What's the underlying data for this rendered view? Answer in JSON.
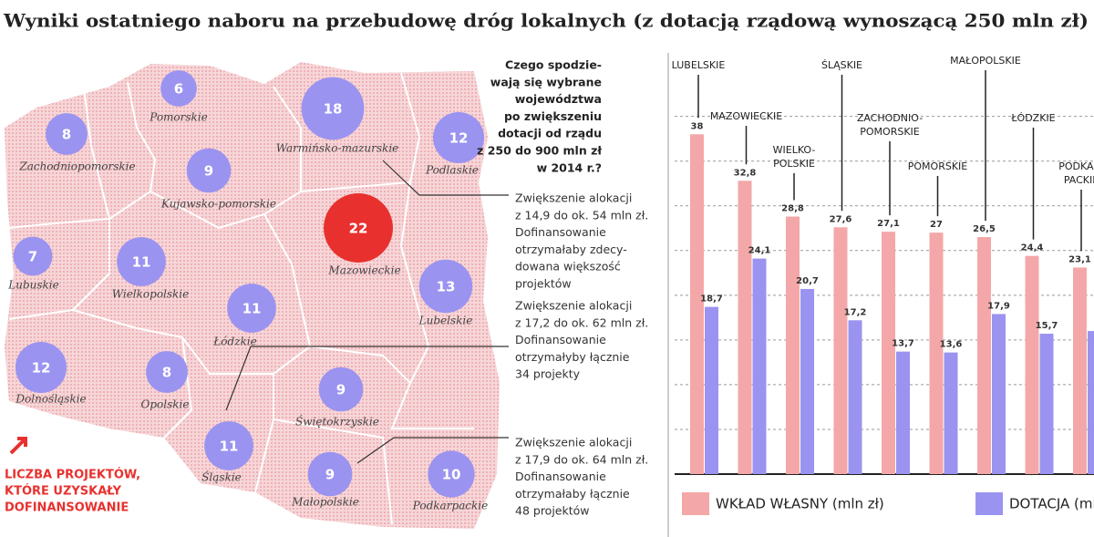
{
  "header": {
    "title": "Wyniki ostatniego naboru na przebudowę dróg lokalnych (z dotacją rządową wynoszącą 250 mln zł)"
  },
  "map": {
    "nodes": [
      {
        "label": "Pomorskie",
        "count": 6,
        "color": "#9b93f0"
      },
      {
        "label": "Zachodniopomorskie",
        "count": 8,
        "color": "#9b93f0"
      },
      {
        "label": "Warmińsko-mazurskie",
        "count": 18,
        "color": "#9b93f0"
      },
      {
        "label": "Podlaskie",
        "count": 12,
        "color": "#9b93f0"
      },
      {
        "label": "Kujawsko-pomorskie",
        "count": 9,
        "color": "#9b93f0"
      },
      {
        "label": "Mazowieckie",
        "count": 22,
        "color": "#e8312f"
      },
      {
        "label": "Lubuskie",
        "count": 7,
        "color": "#9b93f0"
      },
      {
        "label": "Wielkopolskie",
        "count": 11,
        "color": "#9b93f0"
      },
      {
        "label": "Łódzkie",
        "count": 11,
        "color": "#9b93f0"
      },
      {
        "label": "Lubelskie",
        "count": 13,
        "color": "#9b93f0"
      },
      {
        "label": "Dolnośląskie",
        "count": 12,
        "color": "#9b93f0"
      },
      {
        "label": "Opolskie",
        "count": 8,
        "color": "#9b93f0"
      },
      {
        "label": "Świętokrzyskie",
        "count": 9,
        "color": "#9b93f0"
      },
      {
        "label": "Śląskie",
        "count": 11,
        "color": "#9b93f0"
      },
      {
        "label": "Małopolskie",
        "count": 9,
        "color": "#9b93f0"
      },
      {
        "label": "Podkarpackie",
        "count": 10,
        "color": "#9b93f0"
      }
    ],
    "legend": [
      "LICZBA PROJEKTÓW,",
      "KTÓRE UZYSKAŁY",
      "DOFINANSOWANIE"
    ]
  },
  "question": [
    "Czego spodzie-",
    "wają się wybrane",
    "województwa",
    "po zwiększeniu",
    "dotacji od rządu",
    "z 250 do 900 mln zł",
    "w 2014 r.?"
  ],
  "annotations": [
    [
      "Zwiększenie alokacji",
      "z 14,9 do ok. 54 mln zł.",
      "Dofinansowanie",
      "otrzymałaby zdecy-",
      "dowana większość",
      "projektów"
    ],
    [
      "Zwiększenie alokacji",
      "z 17,2 do ok. 62 mln zł.",
      "Dofinansowanie",
      "otrzymałyby łącznie",
      "34 projekty"
    ],
    [
      "Zwiększenie alokacji",
      "z 17,9 do ok. 64 mln zł.",
      "Dofinansowanie",
      "otrzymałaby łącznie",
      "48 projektów"
    ]
  ],
  "chart_data": {
    "type": "bar",
    "categories": [
      "LUBELSKIE",
      "MAZOWIECKIE",
      "WIELKO-\nPOLSKIE",
      "ŚLĄSKIE",
      "ZACHODNIO-\nPOMORSKIE",
      "POMORSKIE",
      "MAŁOPOLSKIE",
      "ŁÓDZKIE",
      "PODKAR-\nPACKIE"
    ],
    "series": [
      {
        "name": "WKŁAD WŁASNY (mln zł)",
        "color": "#f4a7a8",
        "values": [
          38,
          32.8,
          28.8,
          27.6,
          27.1,
          27,
          26.5,
          24.4,
          23.1
        ],
        "value_labels": [
          "38",
          "32,8",
          "28,8",
          "27,6",
          "27,1",
          "27",
          "26,5",
          "24,4",
          "23,1"
        ]
      },
      {
        "name": "DOTACJA (mln zł)",
        "color": "#9b93f0",
        "values": [
          18.7,
          24.1,
          20.7,
          17.2,
          13.7,
          13.6,
          17.9,
          15.7,
          16
        ],
        "value_labels": [
          "18,7",
          "24,1",
          "20,7",
          "17,2",
          "13,7",
          "13,6",
          "17,9",
          "15,7",
          null
        ]
      }
    ],
    "ylim": [
      0,
      47
    ],
    "yticks": [
      0,
      5,
      10,
      15,
      20,
      25,
      30,
      35,
      40
    ],
    "grid": true
  }
}
